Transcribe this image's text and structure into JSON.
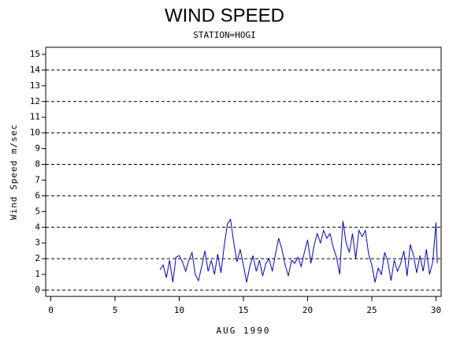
{
  "chart_data": {
    "type": "line",
    "title": "WIND SPEED",
    "subtitle": "STATION=HOGI",
    "x_label": "AUG 1990",
    "y_label": "Wind Speed m/sec",
    "xlim": [
      -0.4,
      30.4
    ],
    "ylim": [
      -0.4,
      15.45
    ],
    "xticks": [
      0,
      5,
      10,
      15,
      20,
      25,
      30
    ],
    "yticks": [
      0,
      1,
      2,
      3,
      4,
      5,
      6,
      7,
      8,
      9,
      10,
      11,
      12,
      13,
      14,
      15
    ],
    "grid_lines": [
      0,
      2,
      4,
      6,
      8,
      10,
      12,
      14
    ],
    "series": [
      {
        "color": "#0000cc",
        "x": [
          8.5,
          8.75,
          9,
          9.25,
          9.5,
          9.75,
          10,
          10.25,
          10.5,
          10.75,
          11,
          11.25,
          11.5,
          11.75,
          12,
          12.25,
          12.5,
          12.75,
          13,
          13.25,
          13.5,
          13.75,
          14,
          14.25,
          14.5,
          14.75,
          15,
          15.25,
          15.5,
          15.75,
          16,
          16.25,
          16.5,
          16.75,
          17,
          17.25,
          17.5,
          17.75,
          18,
          18.25,
          18.5,
          18.75,
          19,
          19.25,
          19.5,
          19.75,
          20,
          20.25,
          20.5,
          20.75,
          21,
          21.25,
          21.5,
          21.75,
          22,
          22.25,
          22.5,
          22.75,
          23,
          23.25,
          23.5,
          23.75,
          24,
          24.25,
          24.5,
          24.75,
          25,
          25.25,
          25.5,
          25.75,
          26,
          26.25,
          26.5,
          26.75,
          27,
          27.25,
          27.5,
          27.75,
          28,
          28.25,
          28.5,
          28.75,
          29,
          29.25,
          29.5,
          29.75,
          30,
          30.1
        ],
        "values": [
          1.3,
          1.6,
          0.8,
          1.9,
          0.5,
          2.1,
          2.2,
          1.8,
          1.2,
          1.9,
          2.4,
          1.0,
          0.6,
          1.5,
          2.5,
          1.2,
          1.9,
          1.0,
          2.3,
          1.1,
          2.8,
          4.2,
          4.5,
          3.0,
          1.8,
          2.6,
          1.6,
          0.5,
          1.5,
          2.2,
          1.2,
          1.9,
          0.9,
          1.7,
          2.0,
          1.2,
          2.3,
          3.3,
          2.6,
          1.6,
          0.9,
          1.9,
          1.7,
          2.1,
          1.5,
          2.4,
          3.2,
          1.7,
          2.8,
          3.6,
          3.0,
          3.8,
          3.3,
          3.6,
          2.7,
          2.1,
          1.0,
          4.4,
          3.0,
          2.4,
          3.6,
          2.0,
          3.8,
          3.4,
          3.8,
          2.3,
          1.6,
          0.5,
          1.4,
          1.0,
          2.4,
          1.8,
          0.6,
          1.9,
          1.2,
          1.7,
          2.5,
          0.9,
          2.9,
          2.2,
          1.1,
          2.2,
          1.2,
          2.6,
          1.0,
          1.8,
          4.3,
          1.7
        ]
      }
    ]
  }
}
